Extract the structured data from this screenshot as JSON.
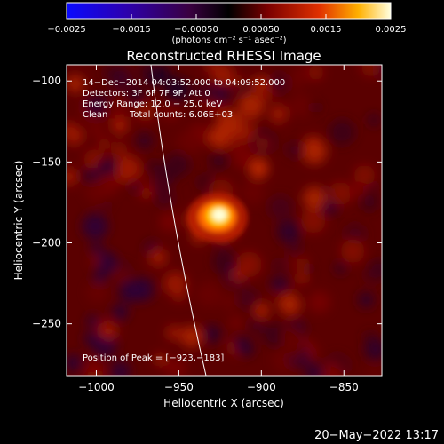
{
  "colorbar": {
    "ticks": [
      -0.0025,
      -0.0015,
      -0.0005,
      0.0005,
      0.0015,
      0.0025
    ],
    "tick_labels": [
      "−0.0025",
      "−0.0015",
      "−0.00050",
      "0.00050",
      "0.0015",
      "0.0025"
    ],
    "unit_label": "(photons cm⁻² s⁻¹ asec⁻²)",
    "range": [
      -0.0025,
      0.0025
    ]
  },
  "chart_data": {
    "type": "heatmap",
    "title": "Reconstructed RHESSI Image",
    "xlabel": "Heliocentric X (arcsec)",
    "ylabel": "Heliocentric Y (arcsec)",
    "xlim": [
      -1018,
      -827
    ],
    "ylim": [
      -282,
      -90
    ],
    "x_ticks": [
      -1000,
      -950,
      -900,
      -850
    ],
    "x_tick_labels": [
      "−1000",
      "−950",
      "−900",
      "−850"
    ],
    "y_ticks": [
      -100,
      -150,
      -200,
      -250
    ],
    "y_tick_labels": [
      "−100",
      "−150",
      "−200",
      "−250"
    ],
    "peak": {
      "x": -923,
      "y": -183
    },
    "annotations": [
      "14−Dec−2014 04:03:52.000 to 04:09:52.000",
      "Detectors: 3F 6F 7F 9F, Att 0",
      "Energy Range: 12.0 − 25.0 keV",
      "Clean",
      "Total counts: 6.06E+03"
    ],
    "peak_label": "Position of Peak = [−923,−183]",
    "limb": true,
    "colormap": "blue-purple-red-yellow-white"
  },
  "footer": {
    "timestamp": "20−May−2022 13:17"
  }
}
